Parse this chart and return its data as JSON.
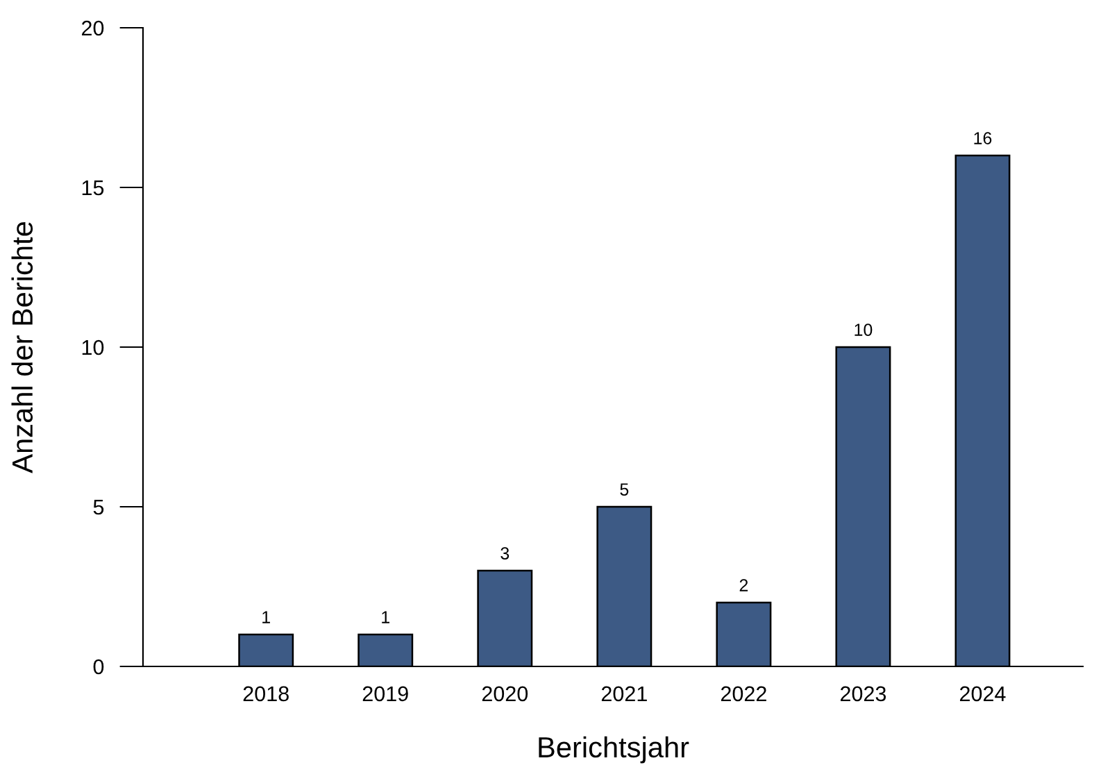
{
  "chart_data": {
    "type": "bar",
    "xlabel": "Berichtsjahr",
    "ylabel": "Anzahl der Berichte",
    "categories": [
      "2018",
      "2019",
      "2020",
      "2021",
      "2022",
      "2023",
      "2024"
    ],
    "values": [
      1,
      1,
      3,
      5,
      2,
      10,
      16
    ],
    "color": "#3d5a85",
    "ylim": [
      0,
      20
    ],
    "yticks": [
      0,
      5,
      10,
      15,
      20
    ],
    "grid": false,
    "data_labels": true
  }
}
